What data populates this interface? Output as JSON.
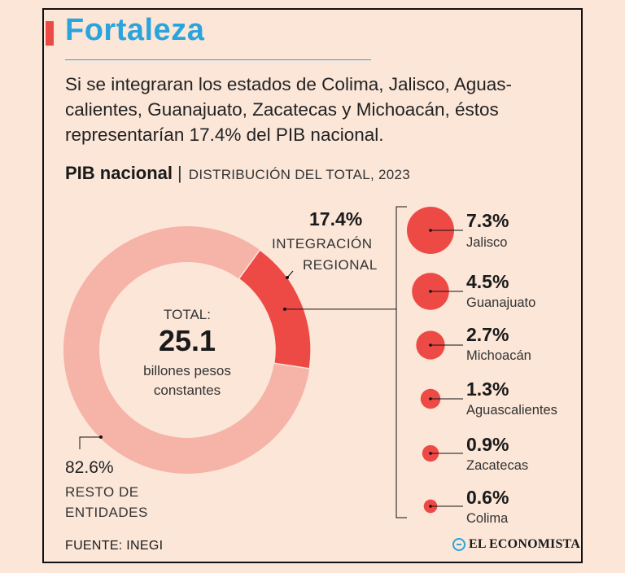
{
  "title": "Fortaleza",
  "lede_lines": [
    "Si se integraran los estados de Colima, Jalisco, Aguas-",
    "calientes, Guanajuato, Zacatecas y Michoacán, éstos",
    "representarían 17.4% del PIB nacional."
  ],
  "heading": {
    "main": "PIB nacional",
    "separator": "|",
    "sub": "DISTRIBUCIÓN DEL TOTAL, 2023"
  },
  "colors": {
    "accent": "#ee4a45",
    "title_blue": "#2aa4dc",
    "donut_light": "#f6b3a8",
    "donut_dark": "#ee4a45",
    "background": "#fbe6d8"
  },
  "chart_data": [
    {
      "type": "pie",
      "variant": "donut",
      "title": "PIB nacional",
      "subtitle": "DISTRIBUCIÓN DEL TOTAL, 2023",
      "center": {
        "label": "TOTAL:",
        "value": "25.1",
        "unit_line1": "billones pesos",
        "unit_line2": "constantes"
      },
      "slices": [
        {
          "name": "Integración regional",
          "value": 17.4,
          "label_pct": "17.4%",
          "label_line1": "INTEGRACIÓN",
          "label_line2": "REGIONAL"
        },
        {
          "name": "Resto de entidades",
          "value": 82.6,
          "label_pct": "82.6%",
          "label_line1": "RESTO DE",
          "label_line2": "ENTIDADES"
        }
      ]
    },
    {
      "type": "scatter",
      "variant": "proportional-bubbles",
      "categories": [
        "Jalisco",
        "Guanajuato",
        "Michoacán",
        "Aguascalientes",
        "Zacatecas",
        "Colima"
      ],
      "values": [
        7.3,
        4.5,
        2.7,
        1.3,
        0.9,
        0.6
      ],
      "labels": [
        "7.3%",
        "4.5%",
        "2.7%",
        "1.3%",
        "0.9%",
        "0.6%"
      ]
    }
  ],
  "footer": {
    "source": "FUENTE: INEGI",
    "brand": "EL ECONOMISTA"
  }
}
